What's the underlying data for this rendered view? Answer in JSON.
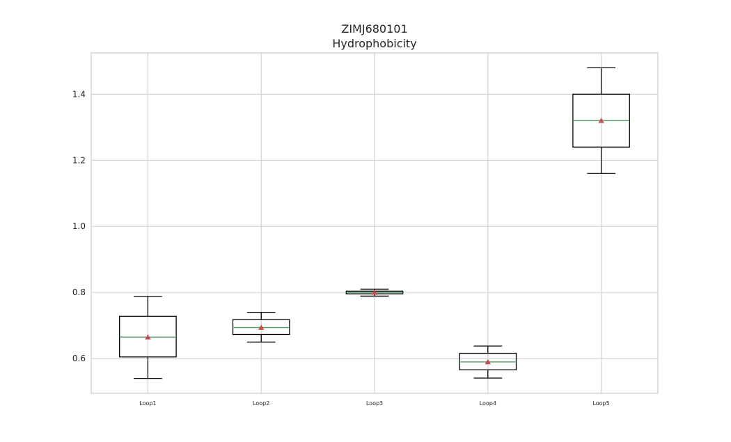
{
  "chart_data": {
    "type": "box",
    "title": "ZIMJ680101",
    "subtitle": "Hydrophobicity",
    "xlabel": "",
    "ylabel": "",
    "ylim": [
      0.495,
      1.525
    ],
    "yticks": [
      0.6,
      0.8,
      1.0,
      1.2,
      1.4
    ],
    "ytick_labels": [
      "0.6",
      "0.8",
      "1.0",
      "1.2",
      "1.4"
    ],
    "grid": true,
    "categories": [
      "Loop1",
      "Loop2",
      "Loop3",
      "Loop4",
      "Loop5"
    ],
    "boxes": [
      {
        "label": "Loop1",
        "whislo": 0.54,
        "q1": 0.605,
        "median": 0.665,
        "q3": 0.728,
        "whishi": 0.788,
        "mean": 0.665
      },
      {
        "label": "Loop2",
        "whislo": 0.65,
        "q1": 0.673,
        "median": 0.694,
        "q3": 0.718,
        "whishi": 0.74,
        "mean": 0.694
      },
      {
        "label": "Loop3",
        "whislo": 0.789,
        "q1": 0.796,
        "median": 0.8,
        "q3": 0.804,
        "whishi": 0.81,
        "mean": 0.8
      },
      {
        "label": "Loop4",
        "whislo": 0.541,
        "q1": 0.566,
        "median": 0.59,
        "q3": 0.616,
        "whishi": 0.638,
        "mean": 0.59
      },
      {
        "label": "Loop5",
        "whislo": 1.16,
        "q1": 1.24,
        "median": 1.32,
        "q3": 1.4,
        "whishi": 1.48,
        "mean": 1.32
      }
    ],
    "colors": {
      "box": "#000000",
      "median": "#4c9e62",
      "mean": "#c44e52",
      "grid": "#d3d3d3"
    }
  }
}
